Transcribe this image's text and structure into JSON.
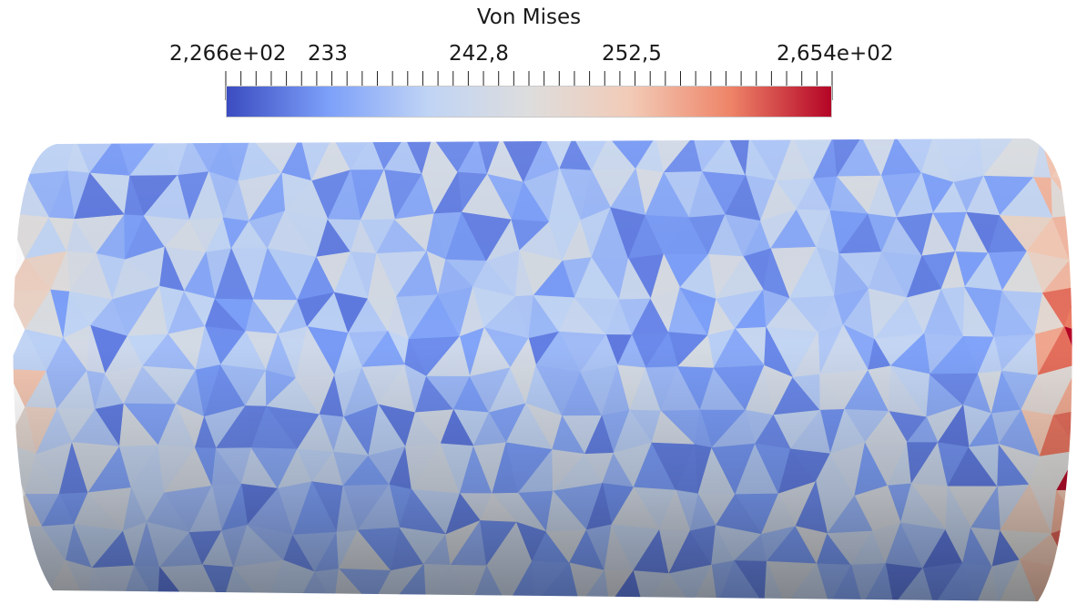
{
  "scalar_bar": {
    "title": "Von Mises",
    "labels": [
      "2,266e+02",
      "233",
      "242,8",
      "252,5",
      "2,654e+02"
    ],
    "label_values": [
      226.6,
      233,
      242.8,
      252.5,
      265.4
    ],
    "range": [
      226.6,
      265.4
    ],
    "colormap": "cool-to-warm",
    "colormap_stops": [
      "#3b4cc0",
      "#7c9ff9",
      "#c0d4f5",
      "#dddddd",
      "#f2cbb7",
      "#ee8468",
      "#b40426"
    ]
  },
  "mesh": {
    "shape": "cylinder",
    "element": "triangle",
    "field": "Von Mises",
    "lighting": "shaded"
  }
}
